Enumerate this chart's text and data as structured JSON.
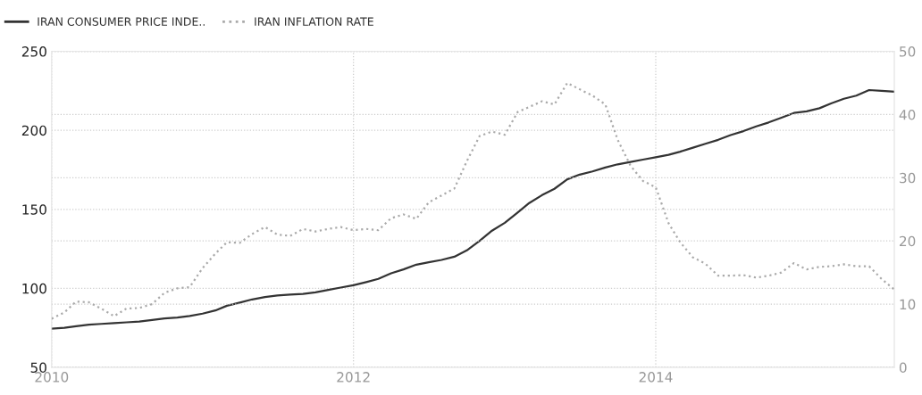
{
  "chart_data": {
    "type": "line",
    "x": [
      "2010-01",
      "2010-02",
      "2010-03",
      "2010-04",
      "2010-05",
      "2010-06",
      "2010-07",
      "2010-08",
      "2010-09",
      "2010-10",
      "2010-11",
      "2010-12",
      "2011-01",
      "2011-02",
      "2011-03",
      "2011-04",
      "2011-05",
      "2011-06",
      "2011-07",
      "2011-08",
      "2011-09",
      "2011-10",
      "2011-11",
      "2011-12",
      "2012-01",
      "2012-02",
      "2012-03",
      "2012-04",
      "2012-05",
      "2012-06",
      "2012-07",
      "2012-08",
      "2012-09",
      "2012-10",
      "2012-11",
      "2012-12",
      "2013-01",
      "2013-02",
      "2013-03",
      "2013-04",
      "2013-05",
      "2013-06",
      "2013-07",
      "2013-08",
      "2013-09",
      "2013-10",
      "2013-11",
      "2013-12",
      "2014-01",
      "2014-02",
      "2014-03",
      "2014-04",
      "2014-05",
      "2014-06",
      "2014-07",
      "2014-08",
      "2014-09",
      "2014-10",
      "2014-11",
      "2014-12",
      "2015-01",
      "2015-02",
      "2015-03",
      "2015-04",
      "2015-05",
      "2015-06",
      "2015-07",
      "2015-08"
    ],
    "series": [
      {
        "name": "IRAN CONSUMER PRICE INDE..",
        "color": "#333333",
        "line_style": "solid",
        "values": [
          74.5,
          75,
          76,
          77,
          77.5,
          78,
          78.5,
          79,
          80,
          81,
          81.5,
          82.5,
          84,
          86,
          89,
          91,
          93,
          94.5,
          95.5,
          96,
          96.5,
          97.5,
          99,
          100.5,
          102,
          104,
          106,
          109.5,
          112,
          115,
          116.5,
          118,
          120,
          124,
          130,
          136.5,
          141.5,
          148,
          154,
          159,
          163,
          169,
          172,
          174,
          176.5,
          178.5,
          180,
          181.5,
          183,
          184.5,
          186.5,
          189,
          191.5,
          194,
          197,
          199.5,
          202.5,
          205,
          208,
          211,
          212,
          214,
          217,
          220,
          222,
          225.5,
          225,
          224.5
        ]
      },
      {
        "name": "IRAN INFLATION RATE",
        "color": "#aaaaaa",
        "line_style": "dotted",
        "axis": "y2",
        "values": [
          7.7,
          8.7,
          10.4,
          10.3,
          9.3,
          8.1,
          9.3,
          9.4,
          10.0,
          11.8,
          12.5,
          12.7,
          15.7,
          18.0,
          19.8,
          19.7,
          21.1,
          22.2,
          21.0,
          20.8,
          21.9,
          21.5,
          21.9,
          22.2,
          21.7,
          21.9,
          21.7,
          23.6,
          24.2,
          23.5,
          26.1,
          27.2,
          28.3,
          32.6,
          36.6,
          37.3,
          36.8,
          40.4,
          41.2,
          42.1,
          41.6,
          45.0,
          44.0,
          43.0,
          41.6,
          36.0,
          31.9,
          29.5,
          28.5,
          22.8,
          19.8,
          17.4,
          16.4,
          14.5,
          14.5,
          14.6,
          14.2,
          14.5,
          15.0,
          16.5,
          15.5,
          15.9,
          16.0,
          16.3,
          16.0,
          16.0,
          14.0,
          12.3
        ]
      }
    ],
    "xlim": [
      "2010-01",
      "2015-08"
    ],
    "xticks": [
      "2010",
      "2012",
      "2014"
    ],
    "ylim": [
      50,
      250
    ],
    "yticks": [
      50,
      100,
      150,
      200,
      250
    ],
    "y2lim": [
      0,
      50
    ],
    "y2ticks": [
      0,
      10,
      20,
      30,
      40,
      50
    ],
    "grid": true,
    "legend": "top left"
  }
}
